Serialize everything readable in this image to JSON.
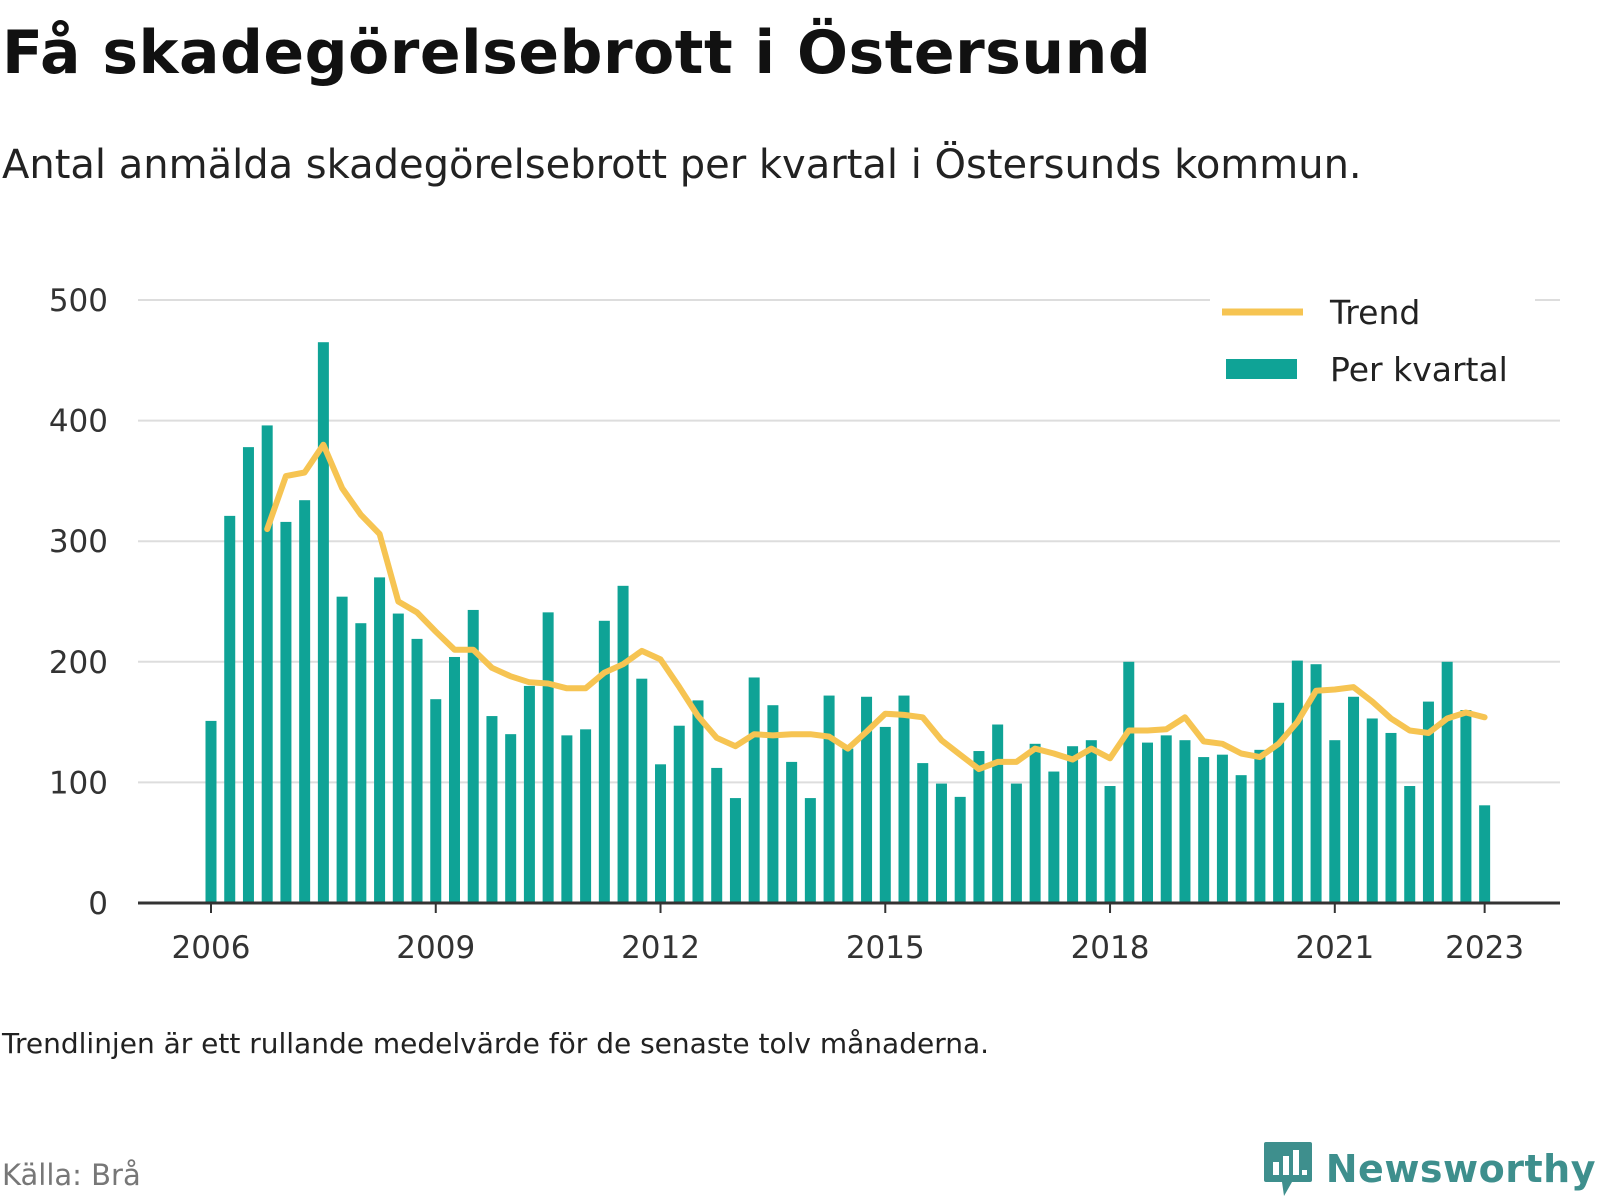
{
  "header": {
    "title": "Få skadegörelsebrott i Östersund",
    "subtitle": "Antal anmälda skadegörelsebrott per kvartal i Östersunds kommun."
  },
  "footer": {
    "note": "Trendlinjen är ett rullande medelvärde för de senaste tolv månaderna.",
    "source": "Källa: Brå",
    "brand": "Newsworthy"
  },
  "colors": {
    "bars": "#0fa396",
    "trend": "#f6c452",
    "grid": "#dddddd",
    "axis": "#333333",
    "brand": "#3e8f8d"
  },
  "chart_data": {
    "type": "bar",
    "title": "",
    "xlabel": "",
    "ylabel": "",
    "ylim": [
      0,
      500
    ],
    "y_ticks": [
      0,
      100,
      200,
      300,
      400,
      500
    ],
    "x_ticks": [
      "2006",
      "2009",
      "2012",
      "2015",
      "2018",
      "2021",
      "2023"
    ],
    "grid": true,
    "legend_position": "top-right",
    "legend": [
      "Trend",
      "Per kvartal"
    ],
    "categories": [
      "2006 Q1",
      "2006 Q2",
      "2006 Q3",
      "2006 Q4",
      "2007 Q1",
      "2007 Q2",
      "2007 Q3",
      "2007 Q4",
      "2008 Q1",
      "2008 Q2",
      "2008 Q3",
      "2008 Q4",
      "2009 Q1",
      "2009 Q2",
      "2009 Q3",
      "2009 Q4",
      "2010 Q1",
      "2010 Q2",
      "2010 Q3",
      "2010 Q4",
      "2011 Q1",
      "2011 Q2",
      "2011 Q3",
      "2011 Q4",
      "2012 Q1",
      "2012 Q2",
      "2012 Q3",
      "2012 Q4",
      "2013 Q1",
      "2013 Q2",
      "2013 Q3",
      "2013 Q4",
      "2014 Q1",
      "2014 Q2",
      "2014 Q3",
      "2014 Q4",
      "2015 Q1",
      "2015 Q2",
      "2015 Q3",
      "2015 Q4",
      "2016 Q1",
      "2016 Q2",
      "2016 Q3",
      "2016 Q4",
      "2017 Q1",
      "2017 Q2",
      "2017 Q3",
      "2017 Q4",
      "2018 Q1",
      "2018 Q2",
      "2018 Q3",
      "2018 Q4",
      "2019 Q1",
      "2019 Q2",
      "2019 Q3",
      "2019 Q4",
      "2020 Q1",
      "2020 Q2",
      "2020 Q3",
      "2020 Q4",
      "2021 Q1",
      "2021 Q2",
      "2021 Q3",
      "2021 Q4",
      "2022 Q1",
      "2022 Q2",
      "2022 Q3",
      "2022 Q4",
      "2023 Q1"
    ],
    "series": [
      {
        "name": "Per kvartal",
        "type": "bar",
        "values": [
          151,
          321,
          378,
          396,
          316,
          334,
          465,
          254,
          232,
          270,
          240,
          219,
          169,
          204,
          243,
          155,
          140,
          180,
          241,
          139,
          144,
          234,
          263,
          186,
          115,
          147,
          168,
          112,
          87,
          187,
          164,
          117,
          87,
          172,
          128,
          171,
          146,
          172,
          116,
          99,
          88,
          126,
          148,
          99,
          132,
          109,
          130,
          135,
          97,
          200,
          133,
          139,
          135,
          121,
          123,
          106,
          127,
          166,
          201,
          198,
          135,
          171,
          153,
          141,
          97,
          167,
          200,
          160,
          81
        ]
      },
      {
        "name": "Trend",
        "type": "line",
        "values": [
          null,
          null,
          null,
          310,
          354,
          357,
          380,
          344,
          322,
          306,
          250,
          241,
          225,
          210,
          210,
          195,
          188,
          183,
          182,
          178,
          178,
          191,
          198,
          209,
          202,
          179,
          155,
          137,
          130,
          140,
          139,
          140,
          140,
          138,
          128,
          142,
          157,
          156,
          154,
          135,
          123,
          111,
          117,
          117,
          128,
          124,
          119,
          128,
          120,
          143,
          143,
          144,
          154,
          134,
          132,
          124,
          121,
          132,
          150,
          176,
          177,
          179,
          167,
          153,
          143,
          141,
          153,
          158,
          154
        ]
      }
    ]
  }
}
